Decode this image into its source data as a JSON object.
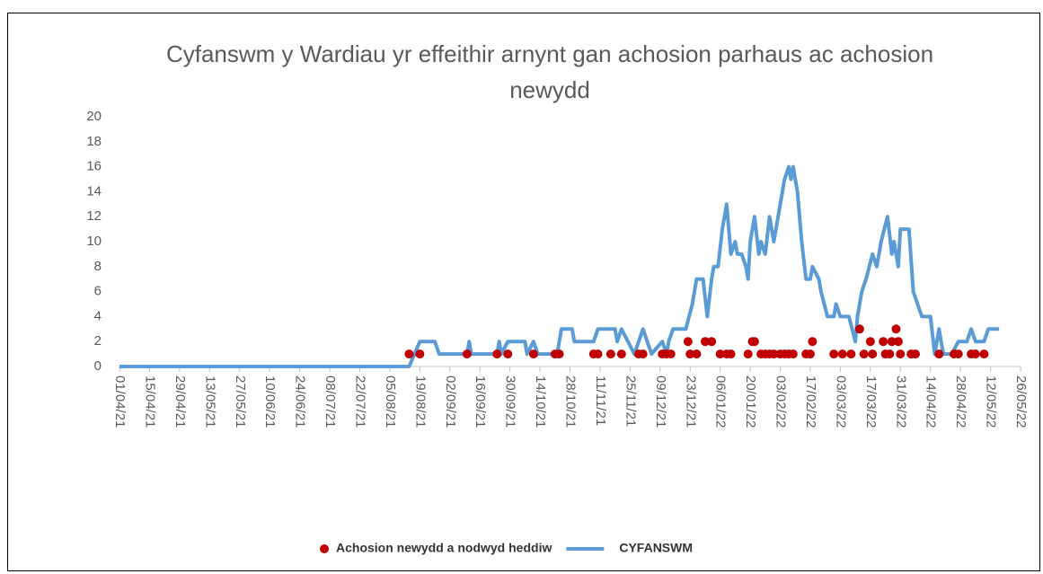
{
  "chart_data": {
    "type": "line",
    "title": "Cyfanswm y Wardiau yr effeithir arnynt gan achosion parhaus ac achosion newydd",
    "xlim": [
      "01/04/21",
      "26/05/22"
    ],
    "xticks": [
      "01/04/21",
      "15/04/21",
      "29/04/21",
      "13/05/21",
      "27/05/21",
      "10/06/21",
      "24/06/21",
      "08/07/21",
      "22/07/21",
      "05/08/21",
      "19/08/21",
      "02/09/21",
      "16/09/21",
      "30/09/21",
      "14/10/21",
      "28/10/21",
      "11/11/21",
      "25/11/21",
      "09/12/21",
      "23/12/21",
      "06/01/22",
      "20/01/22",
      "03/02/22",
      "17/02/22",
      "03/03/22",
      "17/03/22",
      "31/03/22",
      "14/04/22",
      "28/04/22",
      "12/05/22",
      "26/05/22"
    ],
    "ylim": [
      0,
      20
    ],
    "yticks": [
      0,
      2,
      4,
      6,
      8,
      10,
      12,
      14,
      16,
      18,
      20
    ],
    "grid": false,
    "legend": "bottom",
    "series": [
      {
        "name": "Achosion newydd a nodwyd heddiw",
        "type": "scatter",
        "color": "#c00000",
        "x": [
          "14/08/21",
          "19/08/21",
          "10/09/21",
          "24/09/21",
          "29/09/21",
          "11/10/21",
          "21/10/21",
          "23/10/21",
          "08/11/21",
          "10/11/21",
          "16/11/21",
          "21/11/21",
          "29/11/21",
          "01/12/21",
          "10/12/21",
          "12/12/21",
          "14/12/21",
          "22/12/21",
          "23/12/21",
          "26/12/21",
          "30/12/21",
          "02/01/22",
          "06/01/22",
          "09/01/22",
          "11/01/22",
          "19/01/22",
          "21/01/22",
          "22/01/22",
          "25/01/22",
          "27/01/22",
          "29/01/22",
          "31/01/22",
          "03/02/22",
          "05/02/22",
          "07/02/22",
          "09/02/22",
          "15/02/22",
          "17/02/22",
          "18/02/22",
          "28/02/22",
          "04/03/22",
          "08/03/22",
          "12/03/22",
          "14/03/22",
          "17/03/22",
          "18/03/22",
          "23/03/22",
          "24/03/22",
          "26/03/22",
          "27/03/22",
          "29/03/22",
          "30/03/22",
          "31/03/22",
          "05/04/22",
          "07/04/22",
          "18/04/22",
          "25/04/22",
          "27/04/22",
          "03/05/22",
          "05/05/22",
          "09/05/22"
        ],
        "values": [
          1,
          1,
          1,
          1,
          1,
          1,
          1,
          1,
          1,
          1,
          1,
          1,
          1,
          1,
          1,
          1,
          1,
          2,
          1,
          1,
          2,
          2,
          1,
          1,
          1,
          1,
          2,
          2,
          1,
          1,
          1,
          1,
          1,
          1,
          1,
          1,
          1,
          1,
          2,
          1,
          1,
          1,
          3,
          1,
          2,
          1,
          2,
          1,
          1,
          2,
          3,
          2,
          1,
          1,
          1,
          1,
          1,
          1,
          1,
          1,
          1
        ]
      },
      {
        "name": "CYFANSWM",
        "type": "line",
        "color": "#5b9bd5",
        "x": [
          "01/04/21",
          "14/08/21",
          "19/08/21",
          "26/08/21",
          "28/08/21",
          "10/09/21",
          "11/09/21",
          "12/09/21",
          "24/09/21",
          "25/09/21",
          "26/09/21",
          "29/09/21",
          "07/10/21",
          "08/10/21",
          "11/10/21",
          "13/10/21",
          "22/10/21",
          "24/10/21",
          "29/10/21",
          "30/10/21",
          "08/11/21",
          "10/11/21",
          "18/11/21",
          "19/11/21",
          "21/11/21",
          "24/11/21",
          "27/11/21",
          "01/12/21",
          "03/12/21",
          "05/12/21",
          "10/12/21",
          "12/12/21",
          "13/12/21",
          "15/12/21",
          "21/12/21",
          "24/12/21",
          "26/12/21",
          "29/12/21",
          "31/12/21",
          "02/01/22",
          "03/01/22",
          "05/01/22",
          "07/01/22",
          "09/01/22",
          "11/01/22",
          "13/01/22",
          "14/01/22",
          "16/01/22",
          "18/01/22",
          "19/01/22",
          "20/01/22",
          "22/01/22",
          "24/01/22",
          "25/01/22",
          "27/01/22",
          "29/01/22",
          "31/01/22",
          "02/02/22",
          "05/02/22",
          "07/02/22",
          "08/02/22",
          "09/02/22",
          "11/02/22",
          "13/02/22",
          "15/02/22",
          "17/02/22",
          "18/02/22",
          "21/02/22",
          "22/02/22",
          "25/02/22",
          "28/02/22",
          "01/03/22",
          "03/03/22",
          "07/03/22",
          "10/03/22",
          "11/03/22",
          "13/03/22",
          "15/03/22",
          "18/03/22",
          "20/03/22",
          "22/03/22",
          "25/03/22",
          "27/03/22",
          "28/03/22",
          "30/03/22",
          "31/03/22",
          "04/04/22",
          "06/04/22",
          "10/04/22",
          "14/04/22",
          "16/04/22",
          "18/04/22",
          "20/04/22",
          "24/04/22",
          "27/04/22",
          "01/05/22",
          "03/05/22",
          "05/05/22",
          "09/05/22",
          "11/05/22",
          "16/05/22"
        ],
        "values": [
          0,
          0,
          2,
          2,
          1,
          1,
          2,
          1,
          1,
          2,
          1,
          2,
          2,
          1,
          2,
          1,
          1,
          3,
          3,
          2,
          2,
          3,
          3,
          2,
          3,
          2,
          1,
          3,
          2,
          1,
          2,
          1,
          2,
          3,
          3,
          5,
          7,
          7,
          4,
          7,
          8,
          8,
          11,
          13,
          9,
          10,
          9,
          9,
          8,
          7,
          10,
          12,
          9,
          10,
          9,
          12,
          10,
          12,
          15,
          16,
          15,
          16,
          14,
          10,
          7,
          7,
          8,
          7,
          6,
          4,
          4,
          5,
          4,
          4,
          2,
          4,
          6,
          7,
          9,
          8,
          10,
          12,
          9,
          10,
          8,
          11,
          11,
          6,
          4,
          4,
          1,
          3,
          1,
          1,
          2,
          2,
          3,
          2,
          2,
          3,
          3
        ]
      }
    ]
  }
}
